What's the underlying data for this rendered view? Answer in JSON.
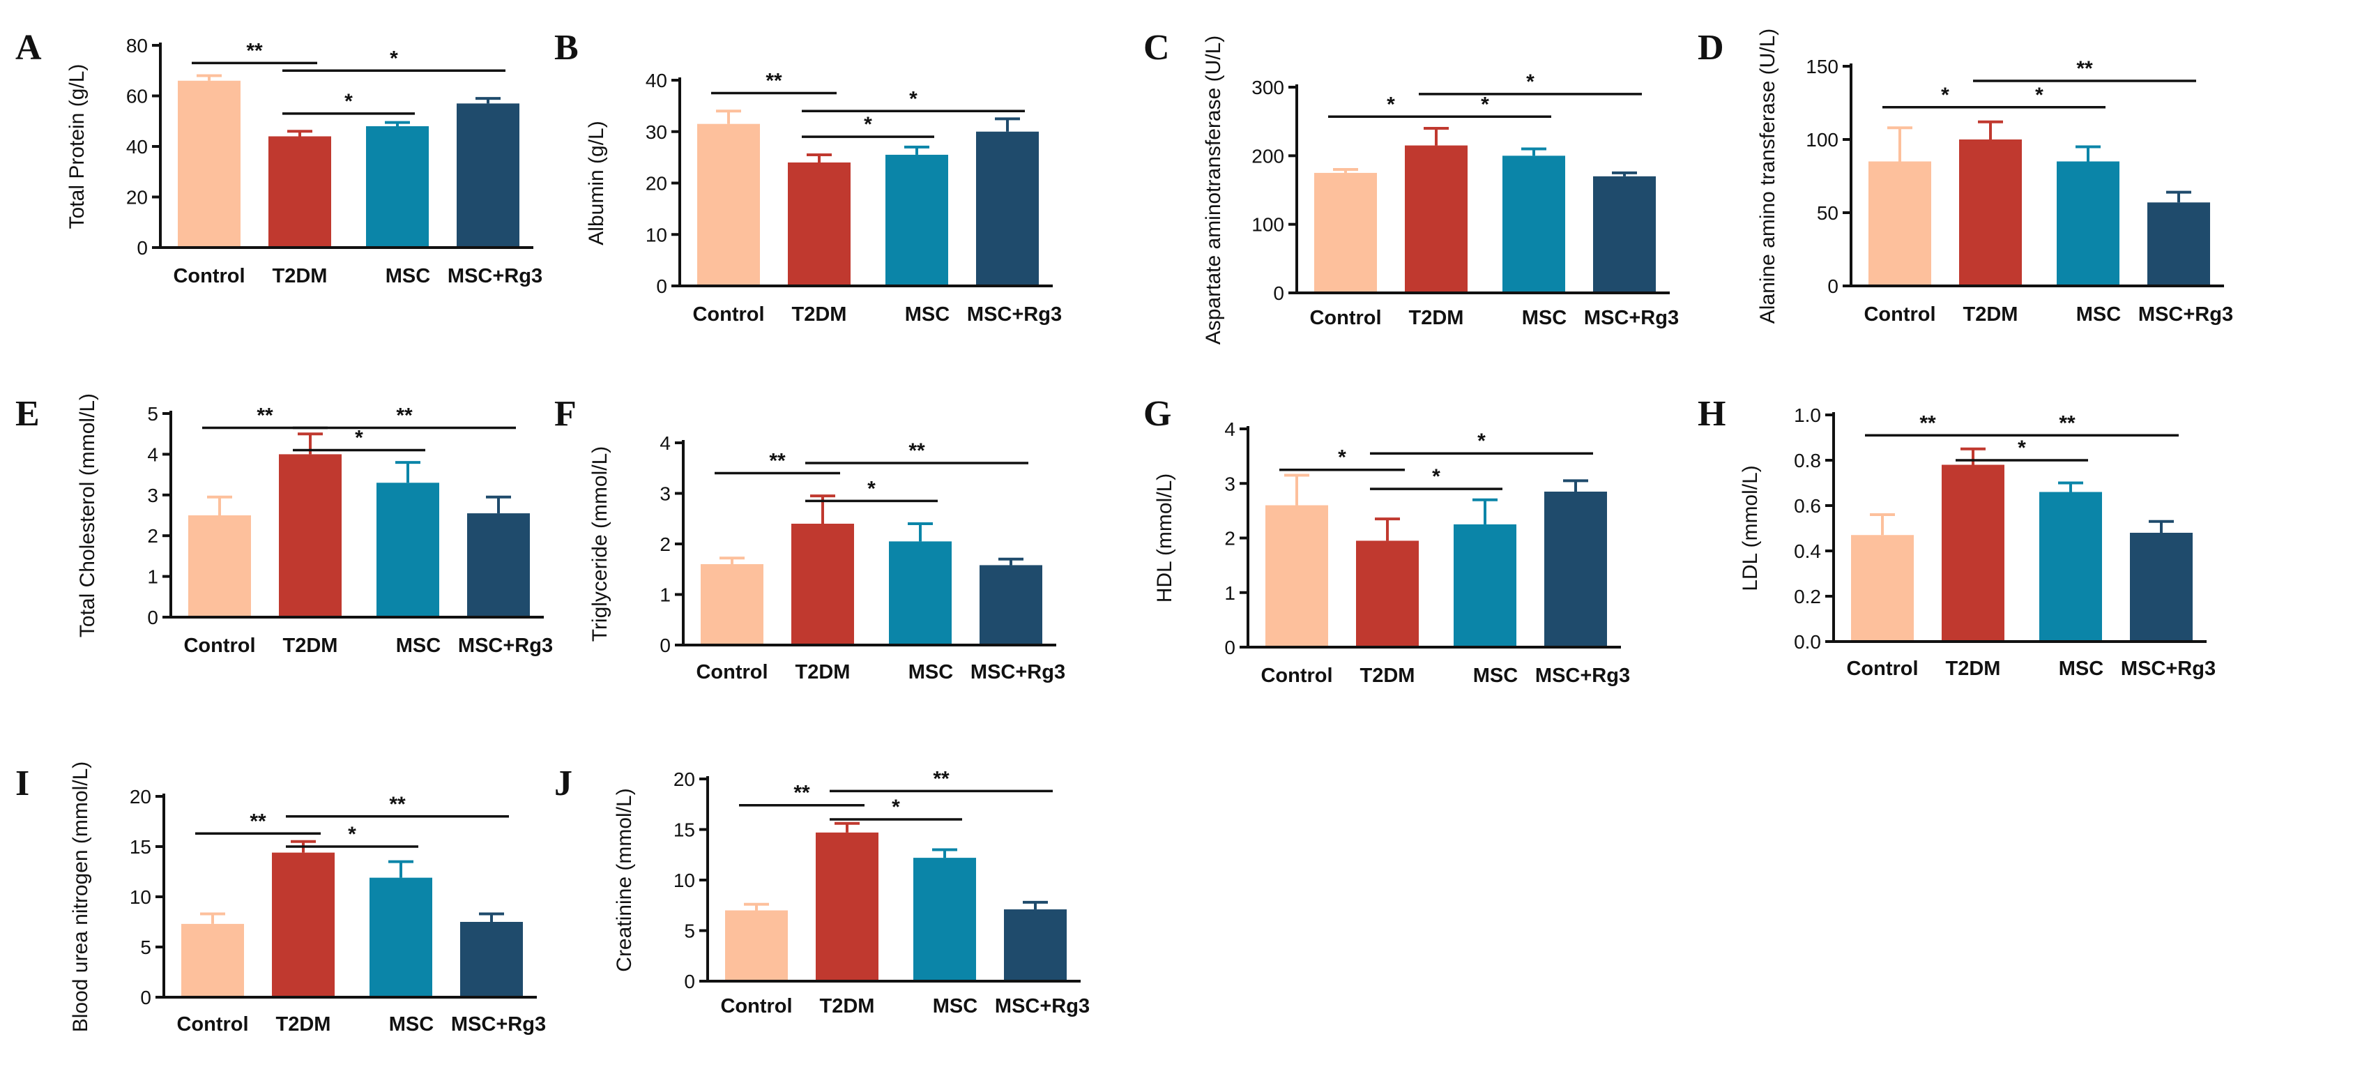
{
  "colors": {
    "Control": "#fdc09c",
    "T2DM": "#c0392f",
    "MSC": "#0b85a8",
    "MSC+Rg3": "#1f4b6c",
    "axis": "#111111"
  },
  "chart_data": [
    {
      "panel": "A",
      "type": "bar",
      "ylabel": "Total Protein (g/L)",
      "categories": [
        "Control",
        "T2DM",
        "MSC",
        "MSC+Rg3"
      ],
      "values": [
        66,
        44,
        48,
        57
      ],
      "errors": [
        2,
        2,
        1.5,
        2
      ],
      "ylim": [
        0,
        80
      ],
      "yticks": [
        0,
        20,
        40,
        60,
        80
      ],
      "significance": [
        {
          "from": 0,
          "to": 1,
          "y": 73,
          "label": "**"
        },
        {
          "from": 1,
          "to": 3,
          "y": 70,
          "label": "*"
        },
        {
          "from": 1,
          "to": 2,
          "y": 53,
          "label": "*"
        }
      ]
    },
    {
      "panel": "B",
      "type": "bar",
      "ylabel": "Albumin (g/L)",
      "categories": [
        "Control",
        "T2DM",
        "MSC",
        "MSC+Rg3"
      ],
      "values": [
        31.5,
        24,
        25.5,
        30
      ],
      "errors": [
        2.5,
        1.5,
        1.5,
        2.5
      ],
      "ylim": [
        0,
        40
      ],
      "yticks": [
        0,
        10,
        20,
        30,
        40
      ],
      "significance": [
        {
          "from": 0,
          "to": 1,
          "y": 37.5,
          "label": "**"
        },
        {
          "from": 1,
          "to": 3,
          "y": 34,
          "label": "*"
        },
        {
          "from": 1,
          "to": 2,
          "y": 29,
          "label": "*"
        }
      ]
    },
    {
      "panel": "C",
      "type": "bar",
      "ylabel": "Aspartate aminotransferase (U/L)",
      "categories": [
        "Control",
        "T2DM",
        "MSC",
        "MSC+Rg3"
      ],
      "values": [
        175,
        215,
        200,
        170
      ],
      "errors": [
        5,
        25,
        10,
        5
      ],
      "ylim": [
        0,
        300
      ],
      "yticks": [
        0,
        100,
        200,
        300
      ],
      "significance": [
        {
          "from": 0,
          "to": 1,
          "y": 257,
          "label": "*"
        },
        {
          "from": 1,
          "to": 3,
          "y": 290,
          "label": "*"
        },
        {
          "from": 1,
          "to": 2,
          "y": 257,
          "label": "*"
        }
      ]
    },
    {
      "panel": "D",
      "type": "bar",
      "ylabel": "Alanine amino transferase (U/L)",
      "categories": [
        "Control",
        "T2DM",
        "MSC",
        "MSC+Rg3"
      ],
      "values": [
        85,
        100,
        85,
        57
      ],
      "errors": [
        23,
        12,
        10,
        7
      ],
      "ylim": [
        0,
        150
      ],
      "yticks": [
        0,
        50,
        100,
        150
      ],
      "significance": [
        {
          "from": 0,
          "to": 1,
          "y": 122,
          "label": "*"
        },
        {
          "from": 1,
          "to": 3,
          "y": 140,
          "label": "**"
        },
        {
          "from": 1,
          "to": 2,
          "y": 122,
          "label": "*"
        }
      ]
    },
    {
      "panel": "E",
      "type": "bar",
      "ylabel": "Total Cholesterol (mmol/L)",
      "categories": [
        "Control",
        "T2DM",
        "MSC",
        "MSC+Rg3"
      ],
      "values": [
        2.5,
        4.0,
        3.3,
        2.55
      ],
      "errors": [
        0.45,
        0.5,
        0.5,
        0.4
      ],
      "ylim": [
        0,
        5
      ],
      "yticks": [
        0,
        1,
        2,
        3,
        4,
        5
      ],
      "significance": [
        {
          "from": 0,
          "to": 1,
          "y": 4.65,
          "label": "**"
        },
        {
          "from": 1,
          "to": 3,
          "y": 4.65,
          "label": "**"
        },
        {
          "from": 1,
          "to": 2,
          "y": 4.1,
          "label": "*"
        }
      ]
    },
    {
      "panel": "F",
      "type": "bar",
      "ylabel": "Triglyceride (mmol/L)",
      "categories": [
        "Control",
        "T2DM",
        "MSC",
        "MSC+Rg3"
      ],
      "values": [
        1.6,
        2.4,
        2.05,
        1.58
      ],
      "errors": [
        0.12,
        0.55,
        0.35,
        0.12
      ],
      "ylim": [
        0,
        4
      ],
      "yticks": [
        0,
        1,
        2,
        3,
        4
      ],
      "significance": [
        {
          "from": 0,
          "to": 1,
          "y": 3.4,
          "label": "**"
        },
        {
          "from": 1,
          "to": 3,
          "y": 3.6,
          "label": "**"
        },
        {
          "from": 1,
          "to": 2,
          "y": 2.85,
          "label": "*"
        }
      ]
    },
    {
      "panel": "G",
      "type": "bar",
      "ylabel": "HDL (mmol/L)",
      "categories": [
        "Control",
        "T2DM",
        "MSC",
        "MSC+Rg3"
      ],
      "values": [
        2.6,
        1.95,
        2.25,
        2.85
      ],
      "errors": [
        0.55,
        0.4,
        0.45,
        0.2
      ],
      "ylim": [
        0,
        4
      ],
      "yticks": [
        0,
        1,
        2,
        3,
        4
      ],
      "significance": [
        {
          "from": 0,
          "to": 1,
          "y": 3.25,
          "label": "*"
        },
        {
          "from": 1,
          "to": 3,
          "y": 3.55,
          "label": "*"
        },
        {
          "from": 1,
          "to": 2,
          "y": 2.9,
          "label": "*"
        }
      ]
    },
    {
      "panel": "H",
      "type": "bar",
      "ylabel": "LDL (mmol/L)",
      "categories": [
        "Control",
        "T2DM",
        "MSC",
        "MSC+Rg3"
      ],
      "values": [
        0.47,
        0.78,
        0.66,
        0.48
      ],
      "errors": [
        0.09,
        0.07,
        0.04,
        0.05
      ],
      "ylim": [
        0,
        1.0
      ],
      "yticks": [
        0.0,
        0.2,
        0.4,
        0.6,
        0.8,
        1.0
      ],
      "significance": [
        {
          "from": 0,
          "to": 1,
          "y": 0.91,
          "label": "**"
        },
        {
          "from": 1,
          "to": 3,
          "y": 0.91,
          "label": "**"
        },
        {
          "from": 1,
          "to": 2,
          "y": 0.8,
          "label": "*"
        }
      ]
    },
    {
      "panel": "I",
      "type": "bar",
      "ylabel": "Blood urea nitrogen (mmol/L)",
      "categories": [
        "Control",
        "T2DM",
        "MSC",
        "MSC+Rg3"
      ],
      "values": [
        7.3,
        14.4,
        11.9,
        7.5
      ],
      "errors": [
        1.0,
        1.1,
        1.6,
        0.8
      ],
      "ylim": [
        0,
        20
      ],
      "yticks": [
        0,
        5,
        10,
        15,
        20
      ],
      "significance": [
        {
          "from": 0,
          "to": 1,
          "y": 16.3,
          "label": "**"
        },
        {
          "from": 1,
          "to": 3,
          "y": 18.0,
          "label": "**"
        },
        {
          "from": 1,
          "to": 2,
          "y": 15.0,
          "label": "*"
        }
      ]
    },
    {
      "panel": "J",
      "type": "bar",
      "ylabel": "Creatinine (mmol/L)",
      "categories": [
        "Control",
        "T2DM",
        "MSC",
        "MSC+Rg3"
      ],
      "values": [
        7.0,
        14.7,
        12.2,
        7.1
      ],
      "errors": [
        0.6,
        0.9,
        0.8,
        0.7
      ],
      "ylim": [
        0,
        20
      ],
      "yticks": [
        0,
        5,
        10,
        15,
        20
      ],
      "significance": [
        {
          "from": 0,
          "to": 1,
          "y": 17.4,
          "label": "**"
        },
        {
          "from": 1,
          "to": 3,
          "y": 18.8,
          "label": "**"
        },
        {
          "from": 1,
          "to": 2,
          "y": 16.0,
          "label": "*"
        }
      ]
    }
  ]
}
